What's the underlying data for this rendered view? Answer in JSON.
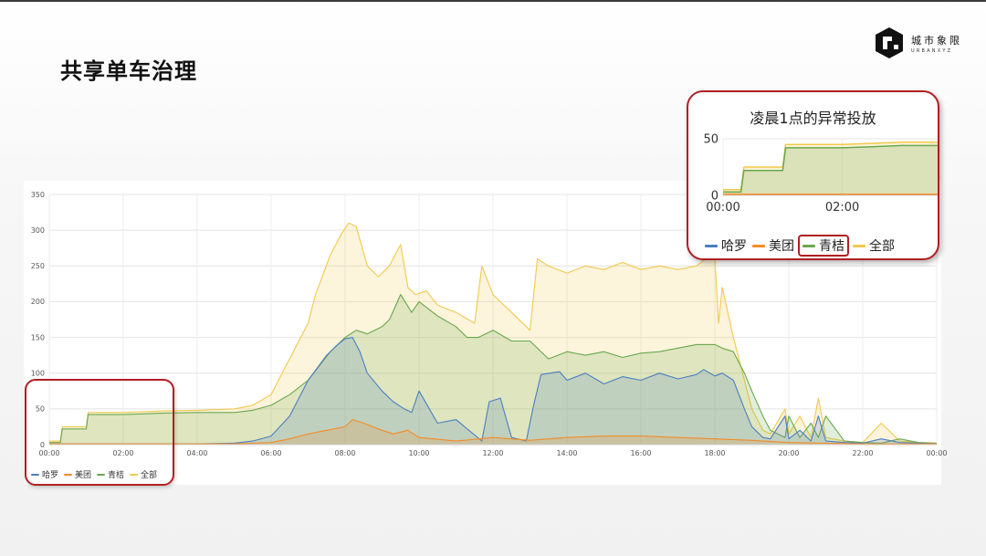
{
  "page": {
    "title": "共享单车治理",
    "logo": {
      "name": "城市象限",
      "sub": "URBANXYZ"
    }
  },
  "colors": {
    "hello": "#4b7fc0",
    "meituan": "#f28c28",
    "qingju": "#6aa84f",
    "all": "#f2c94c",
    "highlight": "#b01f24"
  },
  "chart_data": [
    {
      "type": "area",
      "title": "",
      "xlabel": "",
      "ylabel": "",
      "ylim": [
        0,
        350
      ],
      "yticks": [
        0,
        50,
        100,
        150,
        200,
        250,
        300,
        350
      ],
      "xlim": [
        0,
        24
      ],
      "xticks": [
        "00:00",
        "02:00",
        "04:00",
        "06:00",
        "08:00",
        "10:00",
        "12:00",
        "14:00",
        "16:00",
        "18:00",
        "20:00",
        "22:00",
        "00:00"
      ],
      "grid": true,
      "legend_position": "bottom-left",
      "series": [
        {
          "name": "哈罗",
          "key": "hello",
          "x": [
            0,
            0.5,
            1,
            2,
            3,
            4,
            5,
            5.5,
            6,
            6.5,
            7,
            7.5,
            7.8,
            8,
            8.2,
            8.4,
            8.6,
            9,
            9.3,
            9.6,
            9.8,
            10,
            10.5,
            11,
            11.7,
            11.9,
            12.2,
            12.5,
            12.9,
            13.1,
            13.3,
            13.8,
            14,
            14.5,
            15,
            15.5,
            16,
            16.5,
            17,
            17.5,
            17.7,
            18,
            18.2,
            18.5,
            18.8,
            19,
            19.3,
            19.5,
            19.9,
            20,
            20.3,
            20.6,
            20.8,
            21,
            21.5,
            22,
            22.5,
            23,
            23.5,
            24
          ],
          "y": [
            1,
            1,
            1,
            1,
            1,
            1,
            2,
            5,
            12,
            40,
            90,
            125,
            140,
            148,
            150,
            130,
            100,
            75,
            60,
            50,
            45,
            75,
            30,
            35,
            5,
            60,
            65,
            10,
            5,
            55,
            98,
            102,
            90,
            100,
            85,
            95,
            90,
            100,
            92,
            98,
            105,
            96,
            100,
            90,
            50,
            25,
            10,
            8,
            40,
            8,
            20,
            5,
            40,
            5,
            3,
            2,
            8,
            3,
            2,
            1
          ]
        },
        {
          "name": "美团",
          "key": "meituan",
          "x": [
            0,
            3,
            5,
            6,
            6.5,
            7,
            7.5,
            8,
            8.2,
            8.5,
            9,
            9.3,
            9.7,
            10,
            11,
            12,
            13,
            14,
            15,
            16,
            17,
            18,
            19,
            20,
            21,
            22,
            23,
            24
          ],
          "y": [
            1,
            1,
            1,
            3,
            8,
            15,
            20,
            25,
            35,
            30,
            20,
            15,
            20,
            10,
            5,
            10,
            6,
            10,
            12,
            12,
            10,
            8,
            6,
            3,
            2,
            1,
            1,
            1
          ]
        },
        {
          "name": "青桔",
          "key": "qingju",
          "x": [
            0,
            0.3,
            0.35,
            1,
            1.05,
            2,
            2.5,
            3,
            4,
            5,
            5.5,
            6,
            6.5,
            7,
            7.3,
            7.6,
            8,
            8.3,
            8.6,
            9,
            9.2,
            9.5,
            9.8,
            10,
            10.5,
            11,
            11.3,
            11.6,
            12,
            12.5,
            13,
            13.5,
            14,
            14.5,
            15,
            15.5,
            16,
            16.5,
            17,
            17.5,
            18,
            18.2,
            18.5,
            18.8,
            19,
            19.3,
            19.5,
            19.9,
            20,
            20.3,
            20.6,
            20.8,
            21,
            21.5,
            22,
            22.5,
            23,
            23.5,
            24
          ],
          "y": [
            3,
            3,
            22,
            22,
            42,
            42,
            43,
            44,
            45,
            45,
            48,
            55,
            70,
            90,
            110,
            130,
            150,
            160,
            155,
            165,
            175,
            210,
            185,
            200,
            180,
            165,
            150,
            150,
            160,
            145,
            145,
            120,
            130,
            125,
            130,
            122,
            128,
            130,
            135,
            140,
            140,
            135,
            130,
            100,
            75,
            40,
            20,
            10,
            40,
            10,
            30,
            10,
            40,
            5,
            3,
            2,
            8,
            3,
            2
          ]
        },
        {
          "name": "全部",
          "key": "all",
          "x": [
            0,
            0.3,
            0.35,
            1,
            1.05,
            2,
            2.5,
            3,
            4,
            5,
            5.5,
            6,
            6.3,
            6.6,
            7,
            7.2,
            7.6,
            7.9,
            8.1,
            8.3,
            8.6,
            8.9,
            9.2,
            9.5,
            9.7,
            9.9,
            10.2,
            10.5,
            11,
            11.5,
            11.7,
            12,
            12.5,
            13,
            13.2,
            13.5,
            14,
            14.5,
            15,
            15.5,
            16,
            16.5,
            17,
            17.5,
            17.9,
            18,
            18.1,
            18.2,
            18.5,
            18.8,
            19,
            19.3,
            19.5,
            19.9,
            20,
            20.3,
            20.6,
            20.8,
            21,
            21.5,
            22,
            22.5,
            23,
            23.5,
            24
          ],
          "y": [
            5,
            5,
            25,
            25,
            45,
            45,
            46,
            47,
            48,
            50,
            55,
            70,
            100,
            130,
            170,
            210,
            265,
            295,
            310,
            305,
            250,
            235,
            250,
            280,
            220,
            210,
            215,
            195,
            185,
            170,
            250,
            210,
            185,
            160,
            260,
            250,
            240,
            250,
            245,
            255,
            245,
            250,
            245,
            250,
            265,
            260,
            170,
            220,
            150,
            90,
            50,
            20,
            15,
            50,
            15,
            40,
            10,
            65,
            10,
            5,
            3,
            30,
            5,
            3,
            2
          ]
        }
      ]
    },
    {
      "type": "area",
      "title": "凌晨1点的异常投放",
      "xlabel": "",
      "ylabel": "",
      "ylim": [
        0,
        50
      ],
      "yticks": [
        0,
        50
      ],
      "xlim": [
        0,
        3.6
      ],
      "xticks": [
        "00:00",
        "02:00"
      ],
      "grid": true,
      "legend_position": "bottom",
      "legend_highlight": "青桔",
      "series": [
        {
          "name": "哈罗",
          "key": "hello",
          "x": [
            0,
            3.6
          ],
          "y": [
            1,
            1
          ]
        },
        {
          "name": "美团",
          "key": "meituan",
          "x": [
            0,
            3.6
          ],
          "y": [
            1,
            1
          ]
        },
        {
          "name": "青桔",
          "key": "qingju",
          "x": [
            0,
            0.3,
            0.35,
            1,
            1.05,
            2,
            2.5,
            3,
            3.6
          ],
          "y": [
            3,
            3,
            22,
            22,
            42,
            42,
            43,
            44,
            44
          ]
        },
        {
          "name": "全部",
          "key": "all",
          "x": [
            0,
            0.3,
            0.35,
            1,
            1.05,
            2,
            2.5,
            3,
            3.6
          ],
          "y": [
            5,
            5,
            25,
            25,
            45,
            45,
            46,
            47,
            47
          ]
        }
      ]
    }
  ]
}
